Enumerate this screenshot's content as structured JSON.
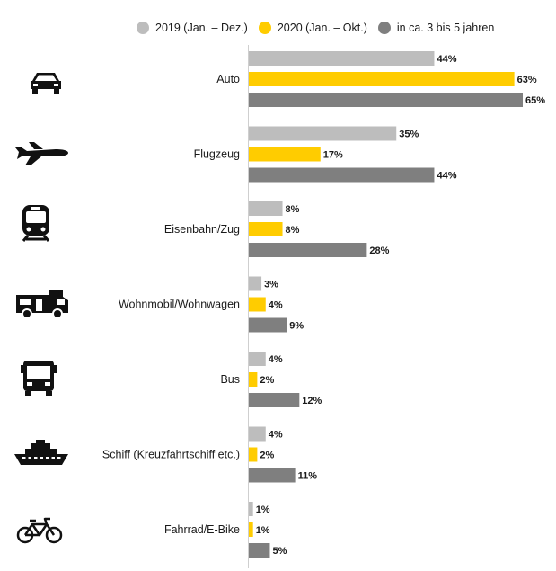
{
  "chart_data": {
    "type": "bar",
    "orientation": "horizontal",
    "categories": [
      "Auto",
      "Flugzeug",
      "Eisenbahn/Zug",
      "Wohnmobil/Wohnwagen",
      "Bus",
      "Schiff (Kreuzfahrtschiff etc.)",
      "Fahrrad/E-Bike"
    ],
    "category_icons": [
      "car-icon",
      "airplane-icon",
      "train-icon",
      "camper-icon",
      "bus-icon",
      "ship-icon",
      "bicycle-icon"
    ],
    "series": [
      {
        "name": "2019 (Jan. – Dez.)",
        "color": "#bdbdbd",
        "values": [
          44,
          35,
          8,
          3,
          4,
          4,
          1
        ]
      },
      {
        "name": "2020 (Jan. – Okt.)",
        "color": "#ffcc00",
        "values": [
          63,
          17,
          8,
          4,
          2,
          2,
          1
        ]
      },
      {
        "name": "in ca. 3 bis 5 jahren",
        "color": "#7f7f7f",
        "values": [
          65,
          44,
          28,
          9,
          12,
          11,
          5
        ]
      }
    ],
    "value_suffix": "%",
    "xlim": [
      0,
      65
    ],
    "legend_position": "top",
    "grid": false
  }
}
